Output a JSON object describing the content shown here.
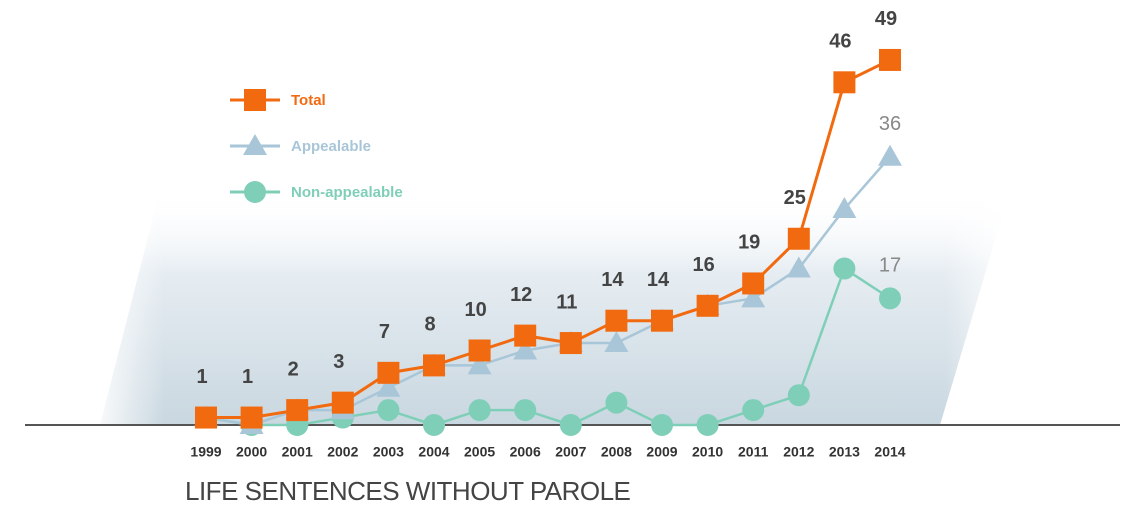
{
  "chart_data": {
    "type": "line",
    "title": "LIFE SENTENCES WITHOUT PAROLE",
    "categories": [
      "1999",
      "2000",
      "2001",
      "2002",
      "2003",
      "2004",
      "2005",
      "2006",
      "2007",
      "2008",
      "2009",
      "2010",
      "2011",
      "2012",
      "2013",
      "2014"
    ],
    "series": [
      {
        "name": "Total",
        "color": "#f26a10",
        "marker": "square",
        "data_labels": "all",
        "values": [
          1,
          1,
          2,
          3,
          7,
          8,
          10,
          12,
          11,
          14,
          14,
          16,
          19,
          25,
          46,
          49
        ]
      },
      {
        "name": "Appealable",
        "color": "#a9c6d8",
        "marker": "triangle",
        "data_labels": "last",
        "values": [
          1,
          0,
          2,
          2,
          5,
          8,
          8,
          10,
          11,
          11,
          14,
          16,
          17,
          21,
          29,
          36
        ]
      },
      {
        "name": "Non-appealable",
        "color": "#7fcfb8",
        "marker": "circle",
        "data_labels": "last",
        "values": [
          1,
          0,
          0,
          1,
          2,
          0,
          2,
          2,
          0,
          3,
          0,
          0,
          2,
          4,
          21,
          17
        ]
      }
    ],
    "ylim": [
      0,
      50
    ],
    "legend": "top-left"
  }
}
